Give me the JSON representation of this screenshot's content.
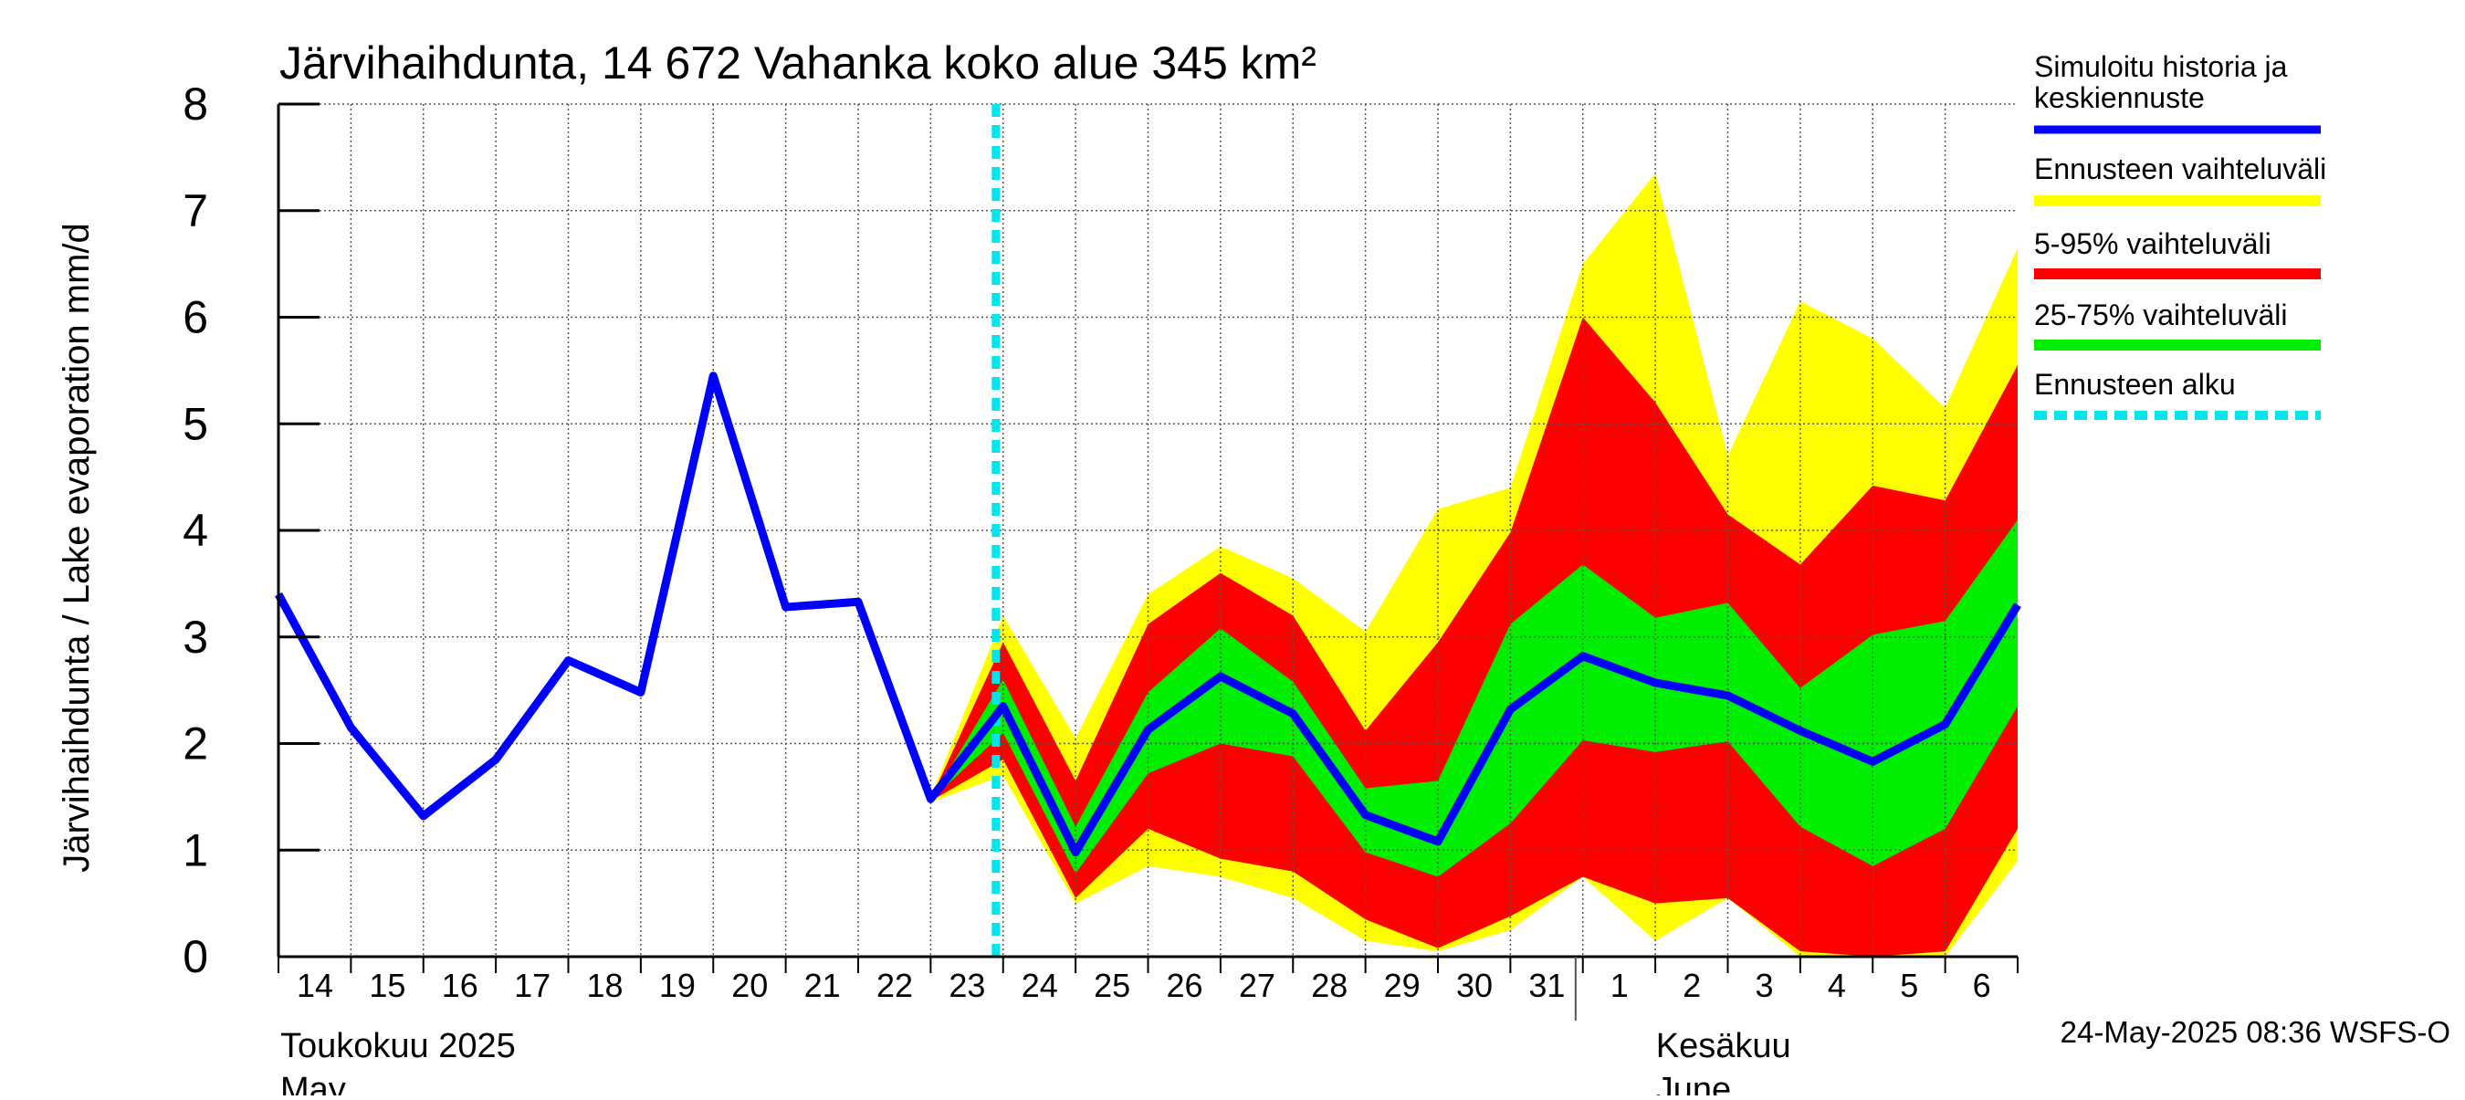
{
  "chart_data": {
    "type": "area",
    "title": "Järvihaihdunta, 14 672 Vahanka koko alue 345 km²",
    "ylabel": "Järvihaihdunta / Lake evaporation   mm/d",
    "ylim": [
      0,
      8
    ],
    "yticks": [
      "0",
      "1",
      "2",
      "3",
      "4",
      "5",
      "6",
      "7",
      "8"
    ],
    "grid": true,
    "legend_position": "right",
    "x_day_labels": [
      "14",
      "15",
      "16",
      "17",
      "18",
      "19",
      "20",
      "21",
      "22",
      "23",
      "24",
      "25",
      "26",
      "27",
      "28",
      "29",
      "30",
      "31",
      "1",
      "2",
      "3",
      "4",
      "5",
      "6"
    ],
    "month_labels": [
      {
        "fi": "Toukokuu  2025",
        "en": "May"
      },
      {
        "fi": "Kesäkuu",
        "en": "June"
      }
    ],
    "timestamp": "24-May-2025 08:36 WSFS-O",
    "forecast_start_x": 23.9,
    "legend": [
      {
        "label": "Simuloitu historia ja\nkeskiennuste",
        "color": "#0000ff",
        "style": "line"
      },
      {
        "label": "Ennusteen vaihteluväli",
        "color": "#ffff00",
        "style": "band"
      },
      {
        "label": "5-95% vaihteluväli",
        "color": "#ff0000",
        "style": "band"
      },
      {
        "label": "25-75% vaihteluväli",
        "color": "#00ee00",
        "style": "band"
      },
      {
        "label": "Ennusteen alku",
        "color": "#00e5ee",
        "style": "dashed"
      }
    ],
    "colors": {
      "history": "#0000ff",
      "range": "#ffff00",
      "p5_95": "#ff0000",
      "p25_75": "#00ee00",
      "forecast_start": "#00e5ee"
    },
    "series": [
      {
        "name": "Simuloitu historia ja keskiennuste",
        "x": [
          14,
          15,
          16,
          17,
          18,
          19,
          20,
          21,
          22,
          23,
          24,
          25,
          26,
          27,
          28,
          29,
          30,
          31,
          32,
          33,
          34,
          35,
          36,
          37,
          38
        ],
        "values": [
          3.4,
          2.15,
          1.32,
          1.85,
          2.78,
          2.48,
          5.45,
          3.28,
          3.33,
          1.48,
          2.35,
          0.98,
          2.13,
          2.63,
          2.28,
          1.33,
          1.08,
          2.32,
          2.82,
          2.57,
          2.45,
          2.12,
          1.83,
          2.18,
          3.3
        ]
      }
    ],
    "bands": {
      "x": [
        23,
        24,
        25,
        26,
        27,
        28,
        29,
        30,
        31,
        32,
        33,
        34,
        35,
        36,
        37,
        38
      ],
      "range_upper": [
        1.5,
        3.2,
        2.05,
        3.4,
        3.85,
        3.55,
        3.05,
        4.2,
        4.4,
        6.5,
        7.35,
        4.7,
        6.15,
        5.8,
        5.15,
        6.65
      ],
      "range_lower": [
        1.45,
        1.7,
        0.5,
        0.85,
        0.75,
        0.55,
        0.15,
        0.05,
        0.25,
        0.75,
        0.15,
        0.55,
        0.0,
        0.0,
        0.0,
        0.9
      ],
      "p95": [
        1.48,
        2.95,
        1.65,
        3.12,
        3.6,
        3.2,
        2.12,
        2.95,
        3.98,
        6.0,
        5.2,
        4.15,
        3.68,
        4.42,
        4.28,
        5.55
      ],
      "p5": [
        1.46,
        1.85,
        0.55,
        1.2,
        0.92,
        0.8,
        0.35,
        0.08,
        0.38,
        0.75,
        0.5,
        0.55,
        0.05,
        0.0,
        0.05,
        1.2
      ],
      "p75": [
        1.47,
        2.6,
        1.22,
        2.48,
        3.08,
        2.58,
        1.58,
        1.65,
        3.12,
        3.68,
        3.18,
        3.32,
        2.52,
        3.02,
        3.15,
        4.1
      ],
      "p25": [
        1.47,
        2.1,
        0.78,
        1.72,
        2.0,
        1.88,
        0.98,
        0.75,
        1.25,
        2.03,
        1.92,
        2.02,
        1.22,
        0.85,
        1.2,
        2.35
      ]
    }
  }
}
